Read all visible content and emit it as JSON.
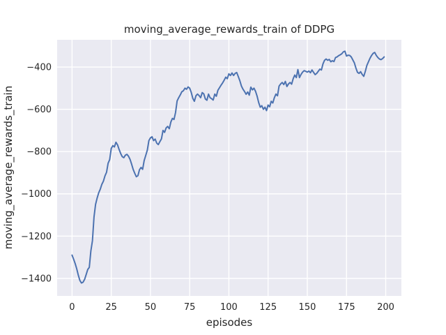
{
  "chart_data": {
    "type": "line",
    "title": "moving_average_rewards_train of DDPG",
    "xlabel": "episodes",
    "ylabel": "moving_average_rewards_train",
    "x_ticks": [
      0,
      25,
      50,
      75,
      100,
      125,
      150,
      175,
      200
    ],
    "y_ticks": [
      -400,
      -600,
      -800,
      -1000,
      -1200,
      -1400
    ],
    "xlim": [
      -9.5,
      210
    ],
    "ylim": [
      -1483,
      -271
    ],
    "grid": true,
    "legend_position": "none",
    "figure_bg_color": "#ffffff",
    "plot_bg_color": "#eaeaf2",
    "grid_color": "#ffffff",
    "text_color": "#262626",
    "series": [
      {
        "name": "moving_average_rewards_train",
        "color": "#4c72b0",
        "x_start": 0,
        "x_step": 1,
        "values": [
          -1290,
          -1309,
          -1330,
          -1355,
          -1385,
          -1410,
          -1422,
          -1418,
          -1405,
          -1382,
          -1358,
          -1348,
          -1270,
          -1222,
          -1110,
          -1050,
          -1020,
          -995,
          -978,
          -955,
          -940,
          -915,
          -898,
          -855,
          -838,
          -785,
          -772,
          -778,
          -756,
          -768,
          -790,
          -809,
          -824,
          -829,
          -817,
          -813,
          -822,
          -837,
          -860,
          -885,
          -903,
          -919,
          -914,
          -886,
          -875,
          -884,
          -842,
          -818,
          -793,
          -748,
          -735,
          -730,
          -748,
          -741,
          -760,
          -767,
          -753,
          -740,
          -700,
          -709,
          -688,
          -681,
          -692,
          -660,
          -643,
          -648,
          -615,
          -560,
          -545,
          -532,
          -517,
          -512,
          -500,
          -505,
          -494,
          -500,
          -520,
          -548,
          -562,
          -536,
          -528,
          -535,
          -545,
          -521,
          -527,
          -551,
          -557,
          -528,
          -545,
          -550,
          -556,
          -528,
          -538,
          -510,
          -498,
          -486,
          -475,
          -462,
          -448,
          -455,
          -432,
          -440,
          -428,
          -440,
          -430,
          -426,
          -445,
          -465,
          -490,
          -505,
          -516,
          -529,
          -518,
          -533,
          -495,
          -508,
          -500,
          -515,
          -538,
          -568,
          -590,
          -583,
          -600,
          -590,
          -606,
          -580,
          -588,
          -562,
          -570,
          -545,
          -528,
          -536,
          -490,
          -480,
          -473,
          -483,
          -468,
          -492,
          -480,
          -473,
          -481,
          -455,
          -438,
          -450,
          -412,
          -450,
          -435,
          -424,
          -417,
          -420,
          -424,
          -419,
          -427,
          -414,
          -425,
          -436,
          -430,
          -420,
          -410,
          -414,
          -385,
          -368,
          -362,
          -368,
          -364,
          -375,
          -370,
          -374,
          -355,
          -352,
          -346,
          -342,
          -337,
          -328,
          -325,
          -348,
          -344,
          -345,
          -352,
          -366,
          -380,
          -405,
          -425,
          -430,
          -422,
          -435,
          -444,
          -420,
          -392,
          -375,
          -358,
          -345,
          -335,
          -331,
          -345,
          -355,
          -362,
          -365,
          -360,
          -352
        ]
      }
    ]
  }
}
